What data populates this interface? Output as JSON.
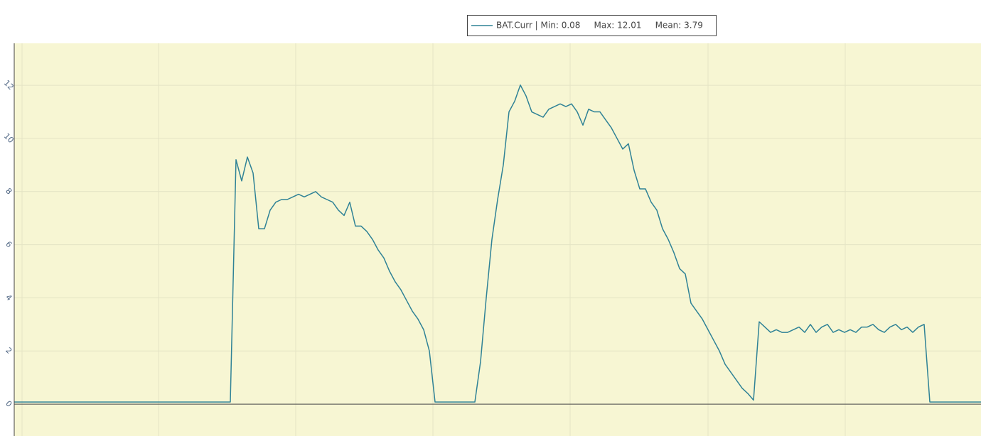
{
  "chart_data": {
    "type": "line",
    "series": [
      {
        "name": "BAT.Curr | Min: 0.08     Max: 12.01     Mean: 3.79",
        "color": "#2f8296",
        "values": [
          0.08,
          0.08,
          0.08,
          0.08,
          0.08,
          0.08,
          0.08,
          0.08,
          0.08,
          0.08,
          0.08,
          0.08,
          0.08,
          0.08,
          0.08,
          0.08,
          0.08,
          0.08,
          0.08,
          0.08,
          0.08,
          0.08,
          0.08,
          0.08,
          0.08,
          0.08,
          0.08,
          0.08,
          0.08,
          0.08,
          0.08,
          0.08,
          0.08,
          0.08,
          0.08,
          0.08,
          0.08,
          0.08,
          0.08,
          9.2,
          8.4,
          9.3,
          8.7,
          6.6,
          6.6,
          7.3,
          7.6,
          7.7,
          7.7,
          7.8,
          7.9,
          7.8,
          7.9,
          8.0,
          7.8,
          7.7,
          7.6,
          7.3,
          7.1,
          7.6,
          6.7,
          6.7,
          6.5,
          6.2,
          5.8,
          5.5,
          5.0,
          4.6,
          4.3,
          3.9,
          3.5,
          3.2,
          2.8,
          2.0,
          0.08,
          0.08,
          0.08,
          0.08,
          0.08,
          0.08,
          0.08,
          0.08,
          1.6,
          4.0,
          6.2,
          7.7,
          9.0,
          11.0,
          11.4,
          12.01,
          11.6,
          11.0,
          10.9,
          10.8,
          11.1,
          11.2,
          11.3,
          11.2,
          11.3,
          11.0,
          10.5,
          11.1,
          11.0,
          11.0,
          10.7,
          10.4,
          10.0,
          9.6,
          9.8,
          8.8,
          8.1,
          8.1,
          7.6,
          7.3,
          6.6,
          6.2,
          5.7,
          5.1,
          4.9,
          3.8,
          3.5,
          3.2,
          2.8,
          2.4,
          2.0,
          1.5,
          1.2,
          0.9,
          0.6,
          0.4,
          0.15,
          3.1,
          2.9,
          2.7,
          2.8,
          2.7,
          2.7,
          2.8,
          2.9,
          2.7,
          3.0,
          2.7,
          2.9,
          3.0,
          2.7,
          2.8,
          2.7,
          2.8,
          2.7,
          2.9,
          2.9,
          3.0,
          2.8,
          2.7,
          2.9,
          3.0,
          2.8,
          2.9,
          2.7,
          2.9,
          3.0,
          0.08,
          0.08,
          0.08,
          0.08,
          0.08,
          0.08,
          0.08,
          0.08,
          0.08,
          0.08
        ]
      }
    ],
    "ylim": [
      -1.2,
      13.58
    ],
    "yticks": [
      0,
      2,
      4,
      6,
      8,
      10,
      12
    ],
    "grid": true,
    "legend": "top"
  }
}
